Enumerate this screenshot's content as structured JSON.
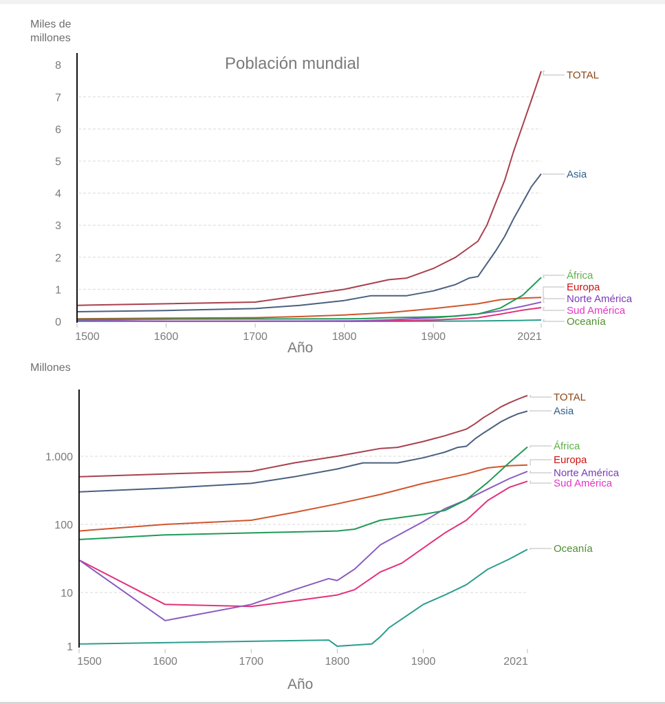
{
  "page": {
    "title": "Población mundial"
  },
  "colors": {
    "TOTAL": {
      "line": "#a8404e",
      "label": "#8b4513"
    },
    "Asia": {
      "line": "#4a5f7e",
      "label": "#2f5f8a"
    },
    "África": {
      "line": "#1e9a55",
      "label": "#5fb04a"
    },
    "Europa": {
      "line": "#d1542a",
      "label": "#cc1111"
    },
    "Norte América": {
      "line": "#8a5cc0",
      "label": "#7a3ab8"
    },
    "Sud América": {
      "line": "#e4307a",
      "label": "#e633c8"
    },
    "Oceanía": {
      "line": "#2a9d8f",
      "label": "#4f8f2f"
    }
  },
  "chart_data": [
    {
      "type": "line",
      "title": "Población mundial",
      "ylabel": "Miles de millones",
      "xlabel": "Año",
      "yscale": "linear",
      "ylim": [
        0,
        8
      ],
      "yticks": [
        "0",
        "1",
        "2",
        "3",
        "4",
        "5",
        "6",
        "7",
        "8"
      ],
      "ytick_values": [
        0,
        1,
        2,
        3,
        4,
        5,
        6,
        7,
        8
      ],
      "xlim": [
        1500,
        2021
      ],
      "xticks": [
        "1500",
        "1600",
        "1700",
        "1800",
        "1900",
        "2021"
      ],
      "xtick_values": [
        1500,
        1600,
        1700,
        1800,
        1900,
        2021
      ],
      "grid": true,
      "legend": "right-inline-labels",
      "unit_divisor": 1000
    },
    {
      "type": "line",
      "title": "",
      "ylabel": "Millones",
      "xlabel": "Año",
      "yscale": "log",
      "ylim": [
        1,
        8000
      ],
      "yticks": [
        "1",
        "10",
        "100",
        "1.000"
      ],
      "ytick_values": [
        1,
        10,
        100,
        1000
      ],
      "xlim": [
        1500,
        2021
      ],
      "xticks": [
        "1500",
        "1600",
        "1700",
        "1800",
        "1900",
        "2021"
      ],
      "xtick_values": [
        1500,
        1600,
        1700,
        1800,
        1900,
        2021
      ],
      "grid": true,
      "legend": "right-inline-labels",
      "unit_divisor": 1
    }
  ],
  "series": [
    {
      "name": "TOTAL",
      "unit": "millones",
      "x": [
        1500,
        1600,
        1700,
        1750,
        1800,
        1850,
        1870,
        1900,
        1925,
        1950,
        1960,
        1970,
        1980,
        1990,
        2000,
        2010,
        2021
      ],
      "values": [
        500,
        550,
        600,
        800,
        1000,
        1300,
        1350,
        1650,
        2000,
        2500,
        3000,
        3700,
        4400,
        5300,
        6100,
        6900,
        7800
      ]
    },
    {
      "name": "Asia",
      "unit": "millones",
      "x": [
        1500,
        1600,
        1700,
        1750,
        1800,
        1830,
        1850,
        1870,
        1900,
        1925,
        1940,
        1950,
        1960,
        1970,
        1980,
        1990,
        2000,
        2010,
        2021
      ],
      "values": [
        300,
        340,
        400,
        500,
        650,
        800,
        800,
        800,
        950,
        1150,
        1350,
        1400,
        1800,
        2200,
        2650,
        3200,
        3700,
        4200,
        4600
      ]
    },
    {
      "name": "África",
      "unit": "millones",
      "x": [
        1500,
        1600,
        1700,
        1800,
        1820,
        1850,
        1900,
        1925,
        1950,
        1975,
        2000,
        2021
      ],
      "values": [
        60,
        70,
        75,
        80,
        85,
        115,
        140,
        160,
        230,
        415,
        810,
        1370
      ]
    },
    {
      "name": "Europa",
      "unit": "millones",
      "x": [
        1500,
        1600,
        1700,
        1750,
        1800,
        1850,
        1900,
        1950,
        1975,
        2000,
        2021
      ],
      "values": [
        80,
        100,
        115,
        150,
        200,
        275,
        400,
        550,
        675,
        725,
        745
      ]
    },
    {
      "name": "Norte América",
      "unit": "millones",
      "x": [
        1500,
        1600,
        1700,
        1750,
        1790,
        1800,
        1820,
        1850,
        1900,
        1925,
        1950,
        1975,
        2000,
        2021
      ],
      "values": [
        30,
        3,
        6,
        11,
        16,
        15,
        22,
        50,
        110,
        170,
        230,
        330,
        470,
        600
      ]
    },
    {
      "name": "Sud América",
      "unit": "millones",
      "x": [
        1500,
        1600,
        1700,
        1750,
        1800,
        1820,
        1850,
        1875,
        1900,
        1925,
        1950,
        1975,
        2000,
        2021
      ],
      "values": [
        30,
        6,
        5.5,
        7,
        9,
        11,
        20,
        27,
        45,
        75,
        115,
        225,
        350,
        430
      ]
    },
    {
      "name": "Oceanía",
      "unit": "millones",
      "x": [
        1500,
        1790,
        1800,
        1840,
        1850,
        1860,
        1900,
        1925,
        1950,
        1975,
        2000,
        2021
      ],
      "values": [
        1.1,
        1.3,
        1.0,
        1.1,
        1.5,
        2.2,
        6,
        9,
        13,
        22,
        31,
        43
      ]
    }
  ],
  "labels_top": [
    "TOTAL",
    "Asia",
    "África",
    "Europa",
    "Norte América",
    "Sud América",
    "Oceanía"
  ],
  "labels_bottom": [
    "TOTAL",
    "Asia",
    "África",
    "Europa",
    "Norte América",
    "Sud América",
    "Oceanía"
  ]
}
